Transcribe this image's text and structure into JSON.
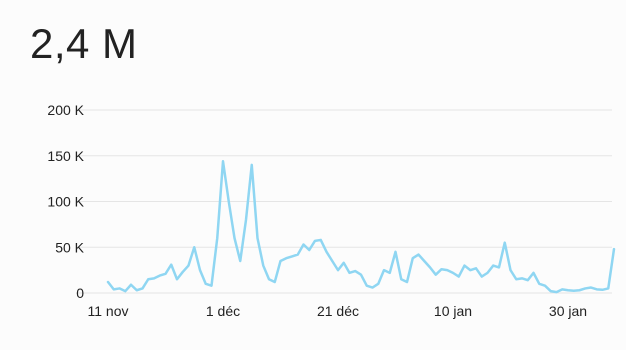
{
  "headline": {
    "value": "2,4 M"
  },
  "chart_data": {
    "type": "line",
    "title": "",
    "xlabel": "",
    "ylabel": "",
    "ylim": [
      0,
      200000
    ],
    "grid": true,
    "y_ticks": [
      {
        "value": 0,
        "label": "0"
      },
      {
        "value": 50000,
        "label": "50 K"
      },
      {
        "value": 100000,
        "label": "100 K"
      },
      {
        "value": 150000,
        "label": "150 K"
      },
      {
        "value": 200000,
        "label": "200 K"
      }
    ],
    "x_ticks": [
      {
        "index": 0,
        "label": "11 nov"
      },
      {
        "index": 20,
        "label": "1 déc"
      },
      {
        "index": 40,
        "label": "21 déc"
      },
      {
        "index": 60,
        "label": "10 jan"
      },
      {
        "index": 80,
        "label": "30 jan"
      }
    ],
    "x_start": "11 nov",
    "series": [
      {
        "name": "",
        "color": "#8fd6f2",
        "values": [
          12000,
          4000,
          5000,
          2000,
          9000,
          3000,
          5000,
          15000,
          16000,
          19000,
          21000,
          31000,
          15000,
          23000,
          30000,
          50000,
          25000,
          10000,
          8000,
          60000,
          144000,
          100000,
          60000,
          35000,
          80000,
          140000,
          60000,
          30000,
          15000,
          12000,
          35000,
          38000,
          40000,
          42000,
          53000,
          47000,
          57000,
          58000,
          45000,
          35000,
          25000,
          33000,
          22000,
          24000,
          20000,
          8000,
          6000,
          10000,
          25000,
          22000,
          45000,
          15000,
          12000,
          38000,
          42000,
          35000,
          28000,
          20000,
          26000,
          25000,
          22000,
          18000,
          30000,
          25000,
          27000,
          18000,
          22000,
          30000,
          28000,
          55000,
          25000,
          15000,
          16000,
          14000,
          22000,
          10000,
          8000,
          2000,
          1000,
          4000,
          3000,
          2500,
          3000,
          5000,
          6000,
          4000,
          3500,
          5000,
          48000
        ]
      }
    ]
  }
}
